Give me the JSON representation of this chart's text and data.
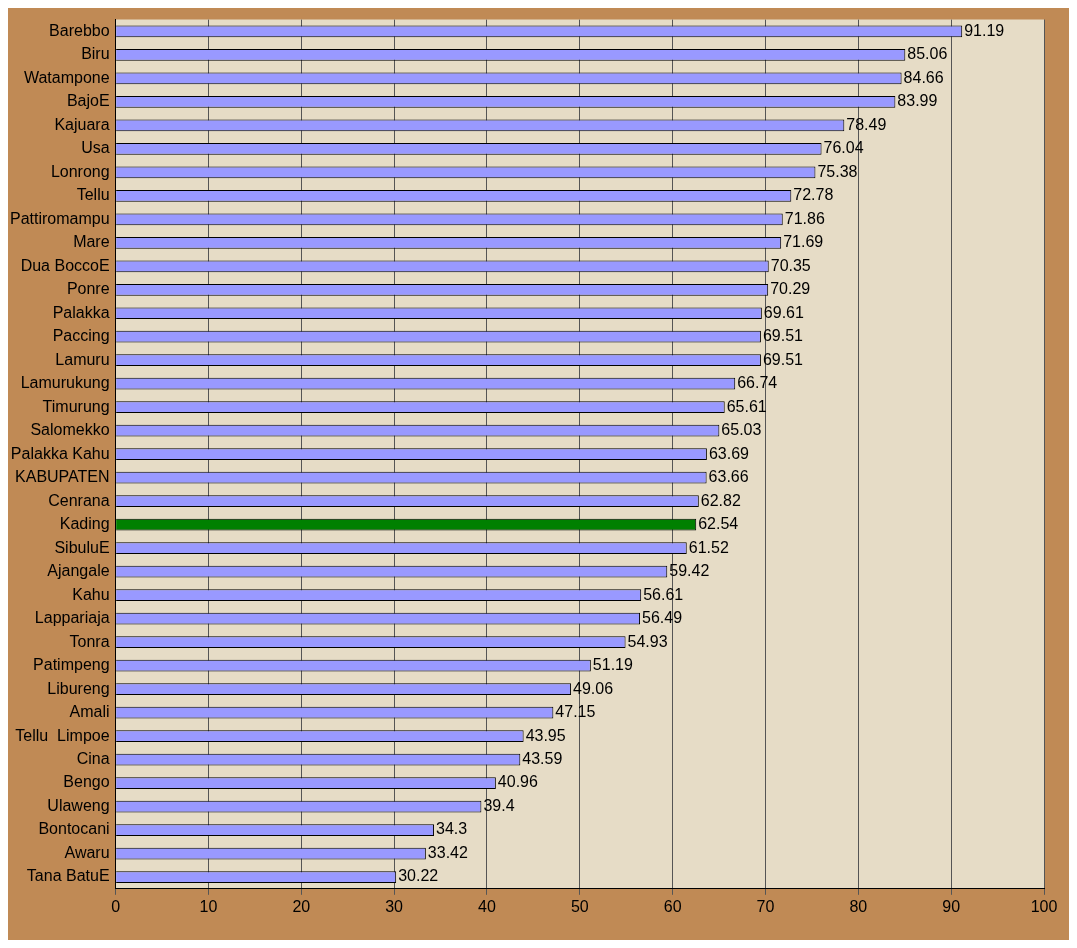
{
  "chart_data": {
    "type": "bar",
    "orientation": "horizontal",
    "categories": [
      "Barebbo",
      "Biru",
      "Watampone",
      "BajoE",
      "Kajuara",
      "Usa",
      "Lonrong",
      "Tellu",
      "Pattiromampu",
      "Mare",
      "Dua BoccoE",
      "Ponre",
      "Palakka",
      "Paccing",
      "Lamuru",
      "Lamurukung",
      "Timurung",
      "Salomekko",
      "Palakka Kahu",
      "KABUPATEN",
      "Cenrana",
      "Kading",
      "SibuluE",
      "Ajangale",
      "Kahu",
      "Lappariaja",
      "Tonra",
      "Patimpeng",
      "Libureng",
      "Amali",
      "Tellu  Limpoe",
      "Cina",
      "Bengo",
      "Ulaweng",
      "Bontocani",
      "Awaru",
      "Tana BatuE"
    ],
    "values": [
      91.19,
      85.06,
      84.66,
      83.99,
      78.49,
      76.04,
      75.38,
      72.78,
      71.86,
      71.69,
      70.35,
      70.29,
      69.61,
      69.51,
      69.51,
      66.74,
      65.61,
      65.03,
      63.69,
      63.66,
      62.82,
      62.54,
      61.52,
      59.42,
      56.61,
      56.49,
      54.93,
      51.19,
      49.06,
      47.15,
      43.95,
      43.59,
      40.96,
      39.4,
      34.3,
      33.42,
      30.22
    ],
    "colors": [
      "#9999ff",
      "#9999ff",
      "#9999ff",
      "#9999ff",
      "#9999ff",
      "#9999ff",
      "#9999ff",
      "#9999ff",
      "#9999ff",
      "#9999ff",
      "#9999ff",
      "#9999ff",
      "#9999ff",
      "#9999ff",
      "#9999ff",
      "#9999ff",
      "#9999ff",
      "#9999ff",
      "#9999ff",
      "#9999ff",
      "#9999ff",
      "#008000",
      "#9999ff",
      "#9999ff",
      "#9999ff",
      "#9999ff",
      "#9999ff",
      "#9999ff",
      "#9999ff",
      "#9999ff",
      "#9999ff",
      "#9999ff",
      "#9999ff",
      "#9999ff",
      "#9999ff",
      "#9999ff",
      "#9999ff"
    ],
    "xlim": [
      0,
      100
    ],
    "xticks": [
      0,
      10,
      20,
      30,
      40,
      50,
      60,
      70,
      80,
      90,
      100
    ],
    "grid": "x",
    "legend": false,
    "data_labels": true
  }
}
